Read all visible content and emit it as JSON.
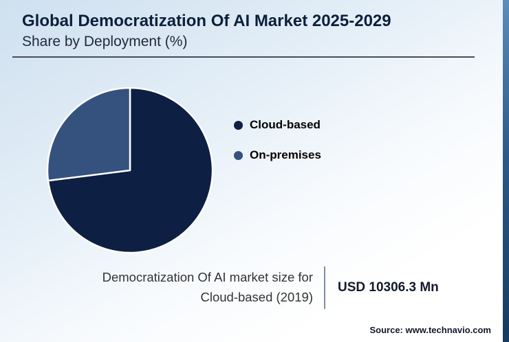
{
  "page": {
    "title": "Global Democratization Of AI Market 2025-2029",
    "subtitle": "Share by Deployment (%)",
    "source": "Source: www.technavio.com"
  },
  "chart_data": {
    "type": "pie",
    "title": "Global Democratization Of AI Market 2025-2029 — Share by Deployment (%)",
    "start_angle": "12-o-clock",
    "direction": "clockwise",
    "legend_position": "right",
    "slices": [
      {
        "label": "Cloud-based",
        "value": 73,
        "color": "#0d1f42"
      },
      {
        "label": "On-premises",
        "value": 27,
        "color": "#35517e"
      }
    ],
    "stroke_color": "#ffffff"
  },
  "stat": {
    "label_line1": "Democratization Of AI market size for",
    "label_line2": "Cloud-based (2019)",
    "value": "USD 10306.3 Mn"
  }
}
